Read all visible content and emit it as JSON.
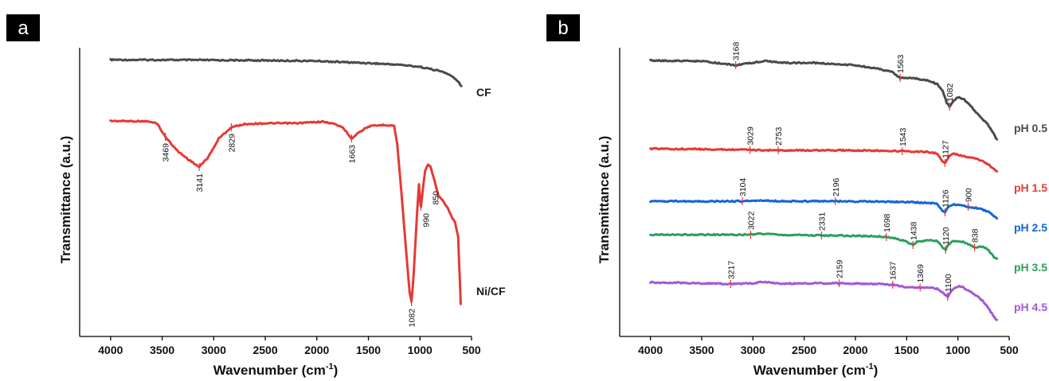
{
  "panels": [
    {
      "letter": "a",
      "chart_data": {
        "type": "line",
        "xlabel": "Wavenumber (cm",
        "xlabel_sup": "-1",
        "xlabel_end": ")",
        "ylabel": "Transmittance (a.u.)",
        "xlim": [
          4300,
          500
        ],
        "x_ticks": [
          "4000",
          "3500",
          "3000",
          "2500",
          "2000",
          "1500",
          "1000",
          "500"
        ],
        "series": [
          {
            "name": "CF",
            "color": "#4a4a4a",
            "points": [
              [
                4000,
                1.2
              ],
              [
                3500,
                1.0
              ],
              [
                3000,
                0.5
              ],
              [
                2500,
                0.0
              ],
              [
                2000,
                -1.0
              ],
              [
                1700,
                -3.5
              ],
              [
                1500,
                -5.0
              ],
              [
                1200,
                -8.0
              ],
              [
                1000,
                -12.0
              ],
              [
                800,
                -20.0
              ],
              [
                700,
                -28.0
              ],
              [
                620,
                -42.0
              ],
              [
                600,
                -48.0
              ]
            ]
          },
          {
            "name": "Ni/CF",
            "color": "#e53935",
            "points": [
              [
                4000,
                0
              ],
              [
                3650,
                -0.5
              ],
              [
                3550,
                -3
              ],
              [
                3469,
                -20
              ],
              [
                3350,
                -38
              ],
              [
                3250,
                -48
              ],
              [
                3141,
                -58
              ],
              [
                3050,
                -45
              ],
              [
                2950,
                -22
              ],
              [
                2829,
                -8
              ],
              [
                2700,
                -4
              ],
              [
                2500,
                -3
              ],
              [
                2200,
                -3
              ],
              [
                1950,
                -1
              ],
              [
                1850,
                -3
              ],
              [
                1750,
                -8
              ],
              [
                1663,
                -22
              ],
              [
                1600,
                -15
              ],
              [
                1500,
                -7
              ],
              [
                1350,
                -5
              ],
              [
                1250,
                -6
              ],
              [
                1220,
                -30
              ],
              [
                1180,
                -90
              ],
              [
                1130,
                -170
              ],
              [
                1100,
                -215
              ],
              [
                1082,
                -228
              ],
              [
                1060,
                -190
              ],
              [
                1030,
                -120
              ],
              [
                1010,
                -80
              ],
              [
                995,
                -105
              ],
              [
                990,
                -108
              ],
              [
                975,
                -90
              ],
              [
                950,
                -62
              ],
              [
                920,
                -55
              ],
              [
                900,
                -57
              ],
              [
                870,
                -70
              ],
              [
                850,
                -80
              ],
              [
                820,
                -95
              ],
              [
                780,
                -100
              ],
              [
                740,
                -108
              ],
              [
                700,
                -118
              ],
              [
                660,
                -128
              ],
              [
                630,
                -145
              ],
              [
                615,
                -195
              ],
              [
                605,
                -230
              ]
            ]
          }
        ],
        "peak_labels": [
          {
            "text": "3469",
            "x": 3469,
            "series": 1
          },
          {
            "text": "3141",
            "x": 3141,
            "series": 1
          },
          {
            "text": "2829",
            "x": 2829,
            "series": 1
          },
          {
            "text": "1663",
            "x": 1663,
            "series": 1
          },
          {
            "text": "990",
            "x": 990,
            "series": 1
          },
          {
            "text": "850",
            "x": 850,
            "series": 1
          },
          {
            "text": "1082",
            "x": 1082,
            "series": 1
          }
        ]
      }
    },
    {
      "letter": "b",
      "chart_data": {
        "type": "line",
        "xlabel": "Wavenumber (cm",
        "xlabel_sup": "-1",
        "xlabel_end": ")",
        "ylabel": "Transmittance (a.u.)",
        "xlim": [
          4300,
          500
        ],
        "x_ticks": [
          "4000",
          "3500",
          "3000",
          "2500",
          "2000",
          "1500",
          "1000",
          "500"
        ],
        "series": [
          {
            "name": "pH 0.5",
            "color": "#4a4a4a",
            "points": [
              [
                4000,
                0
              ],
              [
                3500,
                -1
              ],
              [
                3168,
                -6
              ],
              [
                3000,
                -3
              ],
              [
                2900,
                -0.5
              ],
              [
                2700,
                -3
              ],
              [
                2400,
                -3
              ],
              [
                2000,
                -6
              ],
              [
                1800,
                -10
              ],
              [
                1650,
                -14
              ],
              [
                1563,
                -22
              ],
              [
                1450,
                -22
              ],
              [
                1300,
                -25
              ],
              [
                1200,
                -30
              ],
              [
                1150,
                -38
              ],
              [
                1110,
                -53
              ],
              [
                1082,
                -58
              ],
              [
                1050,
                -52
              ],
              [
                1000,
                -46
              ],
              [
                950,
                -48
              ],
              [
                900,
                -54
              ],
              [
                800,
                -68
              ],
              [
                700,
                -82
              ],
              [
                650,
                -92
              ],
              [
                620,
                -100
              ]
            ]
          },
          {
            "name": "pH 1.5",
            "color": "#e53935",
            "points": [
              [
                4000,
                0
              ],
              [
                3500,
                -0.5
              ],
              [
                3029,
                -1.5
              ],
              [
                2753,
                -2
              ],
              [
                2500,
                -2
              ],
              [
                2000,
                -2
              ],
              [
                1543,
                -3
              ],
              [
                1300,
                -4
              ],
              [
                1200,
                -6
              ],
              [
                1160,
                -15
              ],
              [
                1127,
                -18
              ],
              [
                1100,
                -12
              ],
              [
                1050,
                -6
              ],
              [
                950,
                -9
              ],
              [
                850,
                -12
              ],
              [
                750,
                -16
              ],
              [
                680,
                -22
              ],
              [
                620,
                -28
              ]
            ]
          },
          {
            "name": "pH 2.5",
            "color": "#1565d8",
            "points": [
              [
                4000,
                0
              ],
              [
                3500,
                0
              ],
              [
                3104,
                0
              ],
              [
                2950,
                1
              ],
              [
                2700,
                0
              ],
              [
                2196,
                0
              ],
              [
                1800,
                -0.5
              ],
              [
                1500,
                -1
              ],
              [
                1300,
                -2
              ],
              [
                1200,
                -3
              ],
              [
                1160,
                -11
              ],
              [
                1126,
                -14
              ],
              [
                1090,
                -6
              ],
              [
                1050,
                -4
              ],
              [
                950,
                -5
              ],
              [
                900,
                -7
              ],
              [
                800,
                -9
              ],
              [
                700,
                -13
              ],
              [
                620,
                -21
              ]
            ]
          },
          {
            "name": "pH 3.5",
            "color": "#2e9e5c",
            "points": [
              [
                4000,
                0
              ],
              [
                3500,
                0
              ],
              [
                3022,
                0
              ],
              [
                2950,
                1.5
              ],
              [
                2800,
                0
              ],
              [
                2331,
                -1
              ],
              [
                2000,
                -1.5
              ],
              [
                1800,
                -2
              ],
              [
                1698,
                -3
              ],
              [
                1600,
                -5
              ],
              [
                1500,
                -9
              ],
              [
                1438,
                -13
              ],
              [
                1400,
                -9
              ],
              [
                1300,
                -7
              ],
              [
                1200,
                -8
              ],
              [
                1150,
                -16
              ],
              [
                1120,
                -19
              ],
              [
                1100,
                -13
              ],
              [
                1050,
                -8
              ],
              [
                950,
                -9
              ],
              [
                838,
                -16
              ],
              [
                750,
                -15
              ],
              [
                700,
                -20
              ],
              [
                650,
                -28
              ],
              [
                620,
                -30
              ]
            ]
          },
          {
            "name": "pH 4.5",
            "color": "#a259d4",
            "points": [
              [
                4000,
                0
              ],
              [
                3500,
                -1
              ],
              [
                3217,
                -2
              ],
              [
                3000,
                -1
              ],
              [
                2900,
                0.5
              ],
              [
                2700,
                -1.5
              ],
              [
                2159,
                -1
              ],
              [
                1800,
                -2
              ],
              [
                1637,
                -3
              ],
              [
                1500,
                -6
              ],
              [
                1369,
                -6.5
              ],
              [
                1300,
                -6
              ],
              [
                1200,
                -8
              ],
              [
                1140,
                -14
              ],
              [
                1100,
                -18
              ],
              [
                1060,
                -10
              ],
              [
                1000,
                -5
              ],
              [
                950,
                -6
              ],
              [
                850,
                -14
              ],
              [
                750,
                -24
              ],
              [
                680,
                -37
              ],
              [
                620,
                -48
              ]
            ]
          }
        ],
        "peak_labels": [
          {
            "text": "3168",
            "x": 3168,
            "series": 0
          },
          {
            "text": "1563",
            "x": 1563,
            "series": 0
          },
          {
            "text": "1082",
            "x": 1082,
            "series": 0
          },
          {
            "text": "3029",
            "x": 3029,
            "series": 1
          },
          {
            "text": "2753",
            "x": 2753,
            "series": 1
          },
          {
            "text": "1543",
            "x": 1543,
            "series": 1
          },
          {
            "text": "1127",
            "x": 1127,
            "series": 1
          },
          {
            "text": "3104",
            "x": 3104,
            "series": 2
          },
          {
            "text": "2196",
            "x": 2196,
            "series": 2
          },
          {
            "text": "1126",
            "x": 1126,
            "series": 2
          },
          {
            "text": "900",
            "x": 900,
            "series": 2
          },
          {
            "text": "3022",
            "x": 3022,
            "series": 3
          },
          {
            "text": "2331",
            "x": 2331,
            "series": 3
          },
          {
            "text": "1698",
            "x": 1698,
            "series": 3
          },
          {
            "text": "1438",
            "x": 1438,
            "series": 3
          },
          {
            "text": "1120",
            "x": 1120,
            "series": 3
          },
          {
            "text": "838",
            "x": 838,
            "series": 3
          },
          {
            "text": "3217",
            "x": 3217,
            "series": 4
          },
          {
            "text": "2159",
            "x": 2159,
            "series": 4
          },
          {
            "text": "1637",
            "x": 1637,
            "series": 4
          },
          {
            "text": "1369",
            "x": 1369,
            "series": 4
          },
          {
            "text": "1100",
            "x": 1100,
            "series": 4
          }
        ]
      }
    }
  ]
}
